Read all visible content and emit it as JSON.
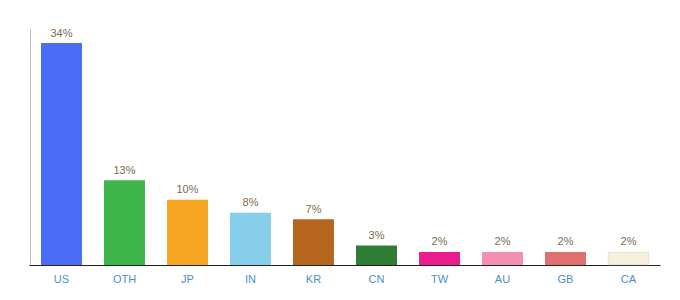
{
  "chart_data": {
    "type": "bar",
    "categories": [
      "US",
      "OTH",
      "JP",
      "IN",
      "KR",
      "CN",
      "TW",
      "AU",
      "GB",
      "CA"
    ],
    "values": [
      34,
      13,
      10,
      8,
      7,
      3,
      2,
      2,
      2,
      2
    ],
    "value_labels": [
      "34%",
      "13%",
      "10%",
      "8%",
      "7%",
      "3%",
      "2%",
      "2%",
      "2%",
      "2%"
    ],
    "colors": [
      "#4a6cf7",
      "#3db54a",
      "#f5a623",
      "#87ceeb",
      "#b5651d",
      "#2e7d32",
      "#e91e8c",
      "#f48fb1",
      "#e07070",
      "#f5f0dc"
    ],
    "ylim": [
      0,
      36
    ],
    "data_labels": true,
    "tick_labels": "x",
    "grid": false
  }
}
